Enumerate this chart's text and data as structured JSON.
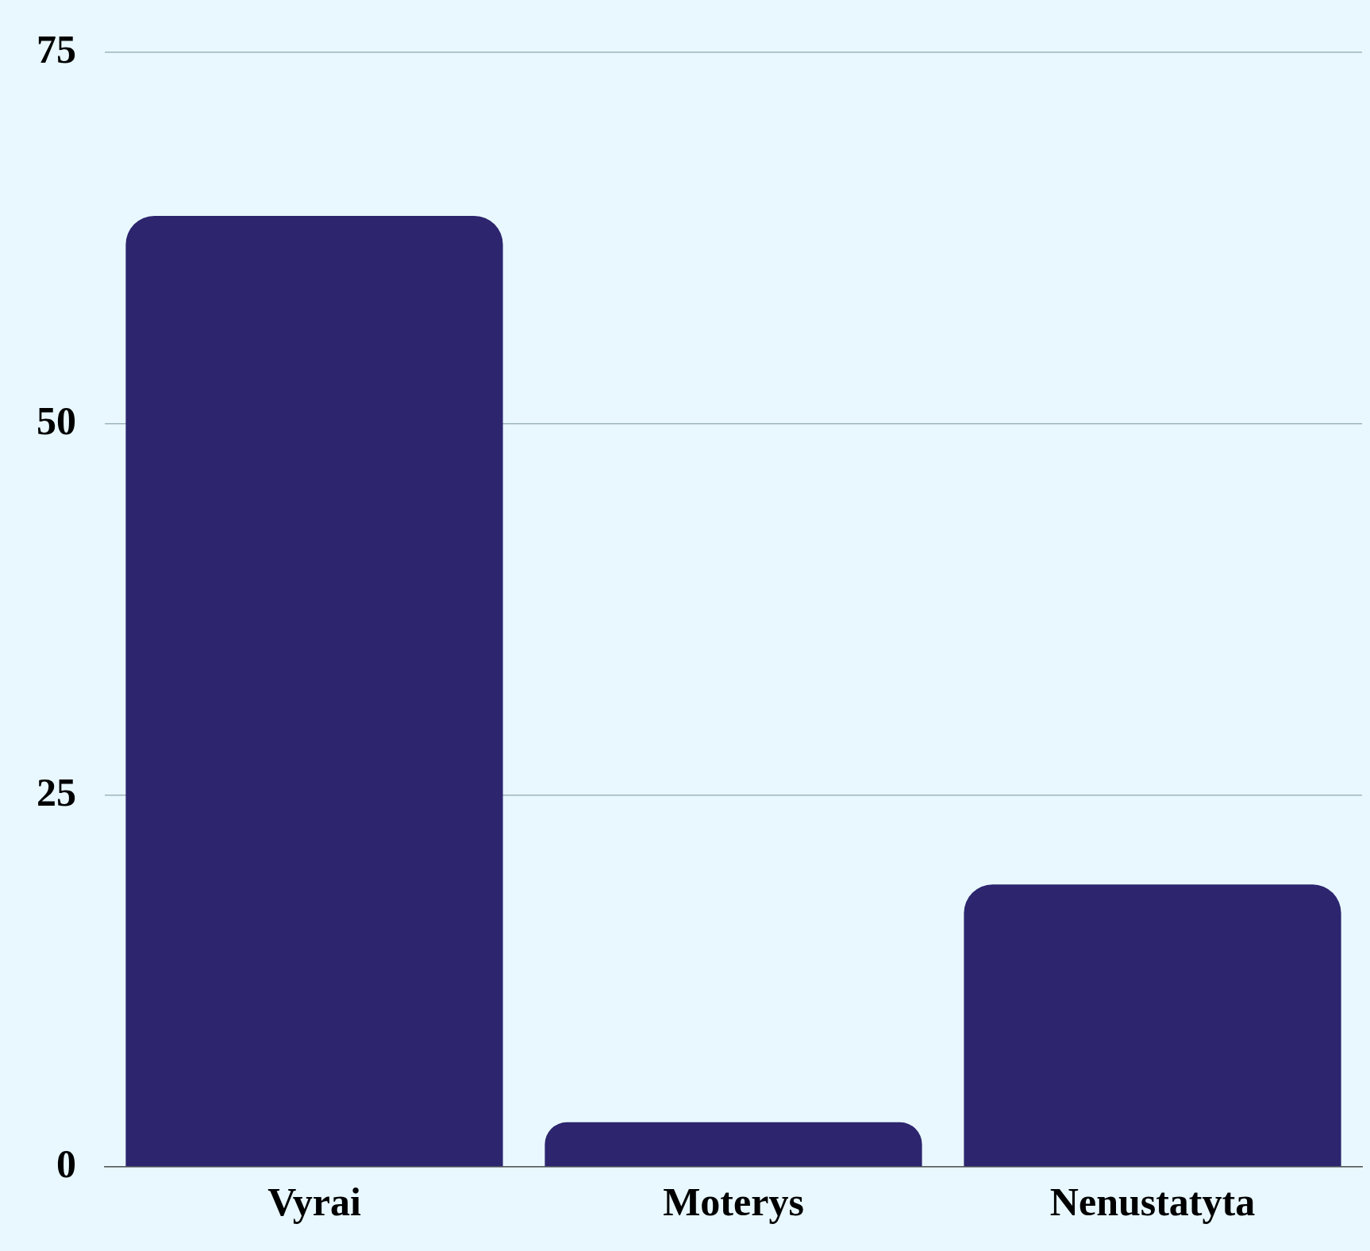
{
  "chart_data": {
    "type": "bar",
    "categories": [
      "Vyrai",
      "Moterys",
      "Nenustatyta"
    ],
    "values": [
      64,
      3,
      19
    ],
    "color": "#2d256e",
    "ylim": [
      0,
      75
    ],
    "yticks": [
      0,
      25,
      50,
      75
    ],
    "grid": "y",
    "legend": false
  }
}
